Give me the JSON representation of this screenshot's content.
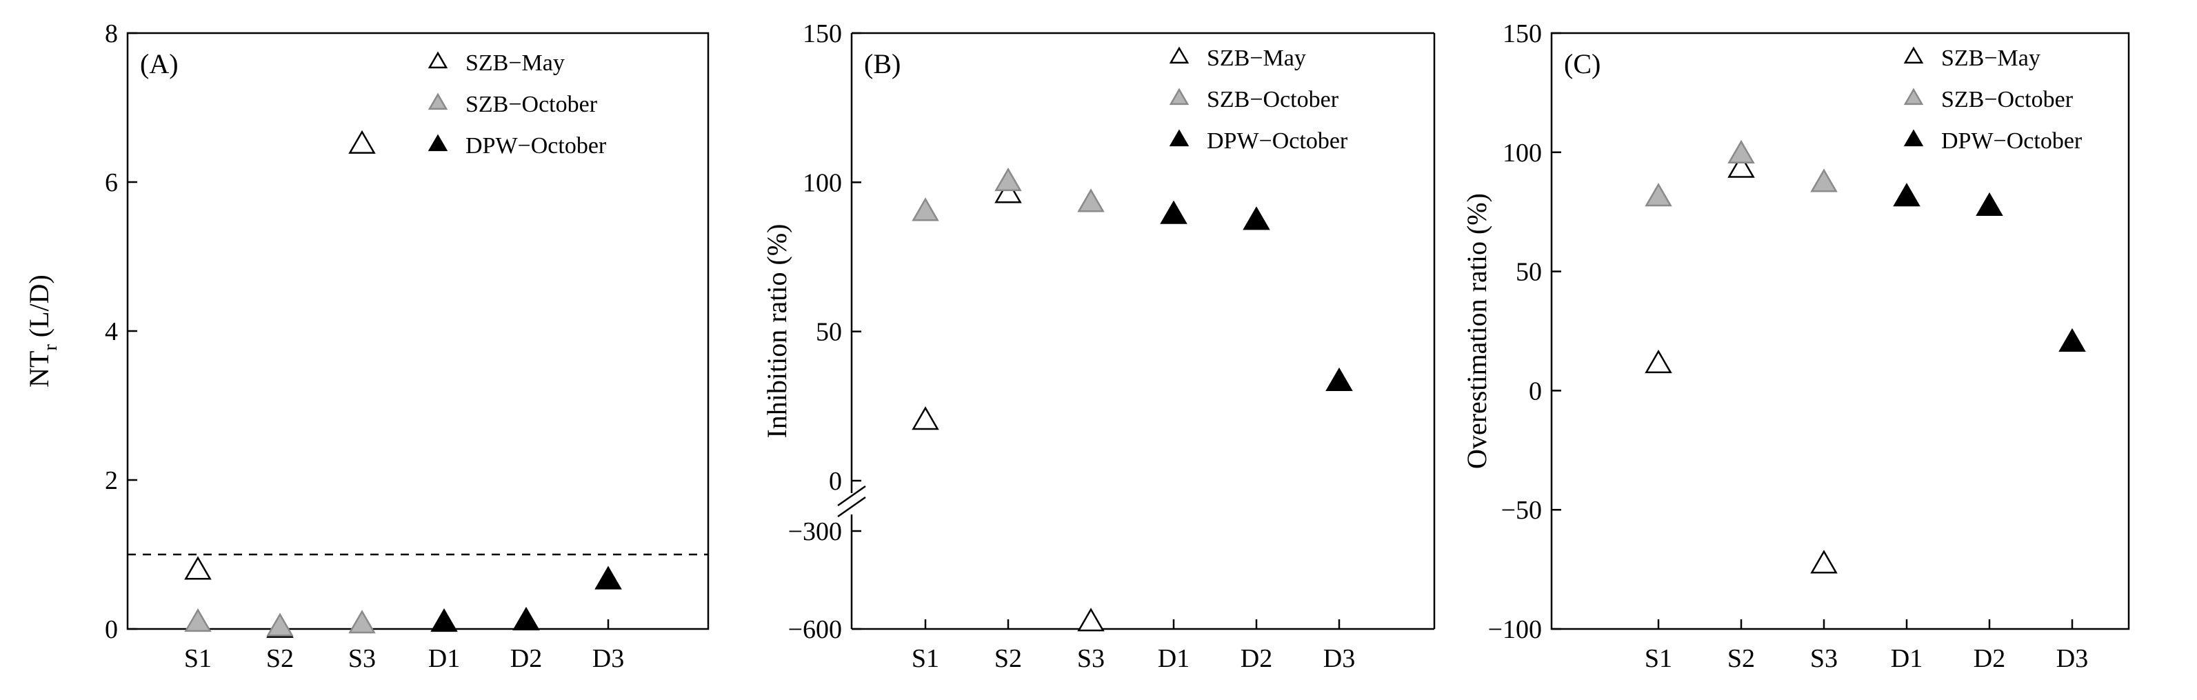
{
  "chart_data": [
    {
      "type": "scatter",
      "panel_label": "(A)",
      "ylabel_main": "NT",
      "ylabel_sub": "r",
      "ylabel_suffix": " (L/D)",
      "categories": [
        "S1",
        "S2",
        "S3",
        "D1",
        "D2",
        "D3"
      ],
      "ylim": [
        0,
        8
      ],
      "yticks": [
        0,
        2,
        4,
        6,
        8
      ],
      "reference_line_y": 1,
      "legend_position": "top-right",
      "series": [
        {
          "name": "SZB−May",
          "style": "open",
          "points": [
            {
              "x": "S1",
              "y": 0.78
            },
            {
              "x": "S2",
              "y": 0.0
            },
            {
              "x": "S3",
              "y": 6.5
            }
          ]
        },
        {
          "name": "SZB−October",
          "style": "gray",
          "points": [
            {
              "x": "S1",
              "y": 0.08
            },
            {
              "x": "S2",
              "y": 0.02
            },
            {
              "x": "S3",
              "y": 0.06
            }
          ]
        },
        {
          "name": "DPW−October",
          "style": "filled",
          "points": [
            {
              "x": "D1",
              "y": 0.08
            },
            {
              "x": "D2",
              "y": 0.1
            },
            {
              "x": "D3",
              "y": 0.65
            }
          ]
        }
      ]
    },
    {
      "type": "scatter",
      "panel_label": "(B)",
      "ylabel": "Inhibition ratio (%)",
      "categories": [
        "S1",
        "S2",
        "S3",
        "D1",
        "D2",
        "D3"
      ],
      "broken_axis": {
        "upper": {
          "ylim": [
            0,
            150
          ],
          "yticks": [
            0,
            50,
            100,
            150
          ]
        },
        "lower": {
          "ylim": [
            -600,
            -300
          ],
          "yticks": [
            -600,
            -300
          ]
        }
      },
      "legend_position": "top-right",
      "series": [
        {
          "name": "SZB−May",
          "style": "open",
          "points": [
            {
              "x": "S1",
              "y": 20
            },
            {
              "x": "S2",
              "y": 96
            },
            {
              "x": "S3",
              "y": -580
            }
          ]
        },
        {
          "name": "SZB−October",
          "style": "gray",
          "points": [
            {
              "x": "S1",
              "y": 90
            },
            {
              "x": "S2",
              "y": 100
            },
            {
              "x": "S3",
              "y": 93
            }
          ]
        },
        {
          "name": "DPW−October",
          "style": "filled",
          "points": [
            {
              "x": "D1",
              "y": 89
            },
            {
              "x": "D2",
              "y": 87
            },
            {
              "x": "D3",
              "y": 33
            }
          ]
        }
      ]
    },
    {
      "type": "scatter",
      "panel_label": "(C)",
      "ylabel": "Overestimation ratio (%)",
      "categories": [
        "S1",
        "S2",
        "S3",
        "D1",
        "D2",
        "D3"
      ],
      "ylim": [
        -100,
        150
      ],
      "yticks": [
        -100,
        -50,
        0,
        50,
        100,
        150
      ],
      "legend_position": "top-right",
      "series": [
        {
          "name": "SZB−May",
          "style": "open",
          "points": [
            {
              "x": "S1",
              "y": 11
            },
            {
              "x": "S2",
              "y": 93
            },
            {
              "x": "S3",
              "y": -73
            }
          ]
        },
        {
          "name": "SZB−October",
          "style": "gray",
          "points": [
            {
              "x": "S1",
              "y": 81
            },
            {
              "x": "S2",
              "y": 99
            },
            {
              "x": "S3",
              "y": 87
            }
          ]
        },
        {
          "name": "DPW−October",
          "style": "filled",
          "points": [
            {
              "x": "D1",
              "y": 81
            },
            {
              "x": "D2",
              "y": 77
            },
            {
              "x": "D3",
              "y": 20
            }
          ]
        }
      ]
    }
  ]
}
